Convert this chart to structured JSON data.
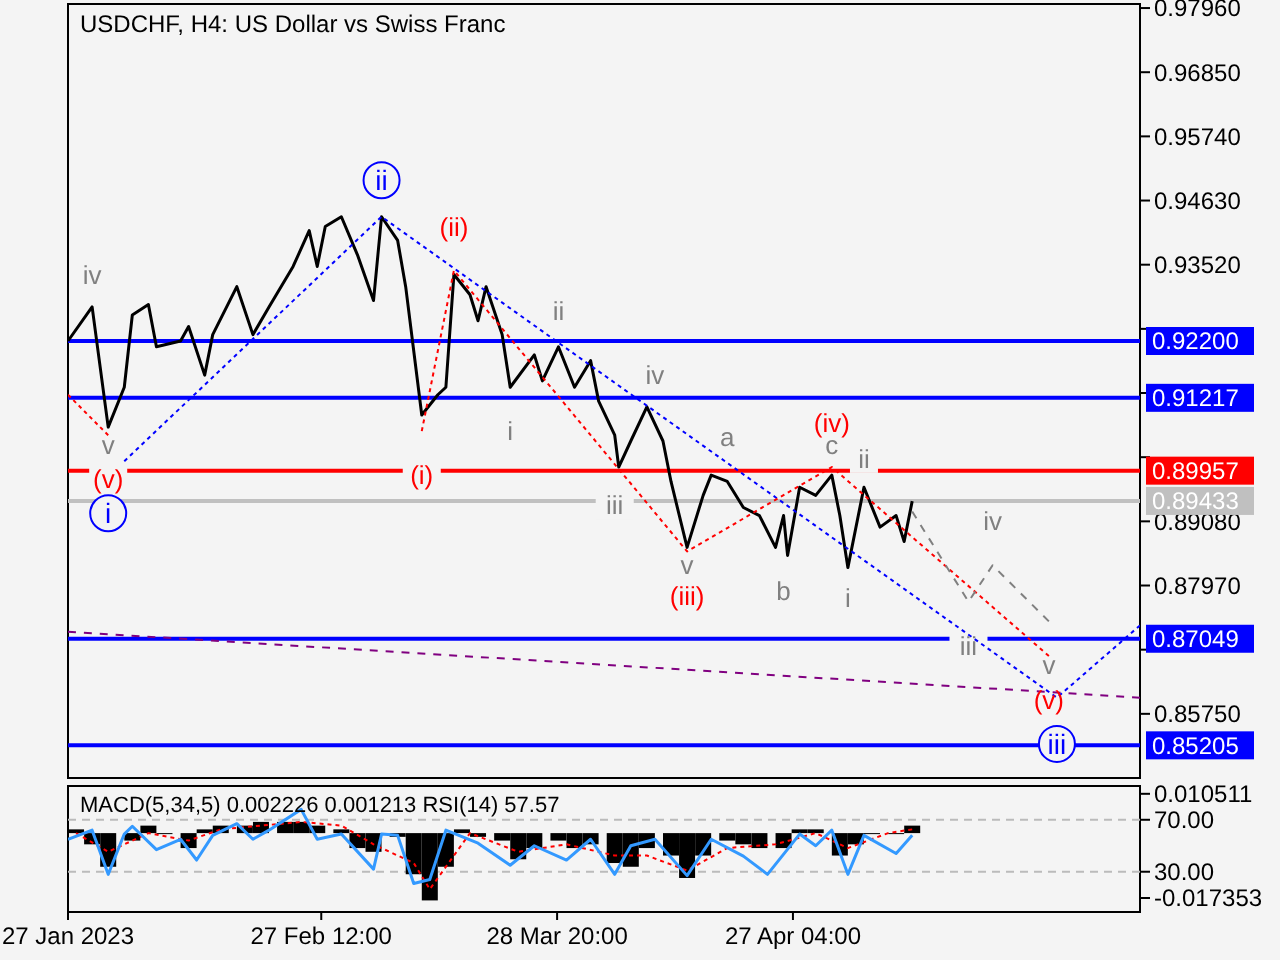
{
  "chart_data": [
    {
      "type": "line",
      "title": "USDCHF, H4:  US Dollar vs Swiss Franc",
      "xlim": [
        "2023-01-27",
        "2023-06-09T08:00"
      ],
      "ylim": [
        0.8464,
        0.9803
      ],
      "tick_labels": "y",
      "yticks": [
        {
          "value": 0.9796,
          "label": "0.97960"
        },
        {
          "value": 0.9685,
          "label": "0.96850"
        },
        {
          "value": 0.9574,
          "label": "0.95740"
        },
        {
          "value": 0.9463,
          "label": "0.94630"
        },
        {
          "value": 0.9352,
          "label": "0.93520"
        },
        {
          "value": 0.9241,
          "label": null
        },
        {
          "value": 0.913,
          "label": null
        },
        {
          "value": 0.9019,
          "label": null
        },
        {
          "value": 0.8908,
          "label": "0.89080"
        },
        {
          "value": 0.8797,
          "label": "0.87970"
        },
        {
          "value": 0.8686,
          "label": null
        },
        {
          "value": 0.8575,
          "label": "0.85750"
        }
      ],
      "ref_lines": [
        {
          "axis": "y",
          "value": 0.922,
          "label": "0.92200",
          "color": "#0000ff"
        },
        {
          "axis": "y",
          "value": 0.91217,
          "label": "0.91217",
          "color": "#0000ff"
        },
        {
          "axis": "y",
          "value": 0.89957,
          "label": "0.89957",
          "color": "#ff0000"
        },
        {
          "axis": "y",
          "value": 0.89433,
          "label": "0.89433",
          "color": "#c0c0c0"
        },
        {
          "axis": "y",
          "value": 0.87049,
          "label": "0.87049",
          "color": "#0000ff"
        },
        {
          "axis": "y",
          "value": 0.85205,
          "label": "0.85205",
          "color": "#0000ff"
        }
      ],
      "annotations": [
        {
          "text": "iv",
          "x": "2023-01-30",
          "y": 0.9335
        },
        {
          "text": "v",
          "x": "2023-02-01",
          "y": 0.904
        },
        {
          "text": "ii",
          "x": "2023-03-29",
          "y": 0.9272
        },
        {
          "text": "i",
          "x": "2023-03-23",
          "y": 0.9064
        },
        {
          "text": "iii",
          "x": "2023-04-05",
          "y": 0.8936
        },
        {
          "text": "iv",
          "x": "2023-04-10",
          "y": 0.9161
        },
        {
          "text": "v",
          "x": "2023-04-14",
          "y": 0.8832
        },
        {
          "text": "a",
          "x": "2023-04-19",
          "y": 0.9054
        },
        {
          "text": "b",
          "x": "2023-04-26",
          "y": 0.8787
        },
        {
          "text": "c",
          "x": "2023-05-02",
          "y": 0.904
        },
        {
          "text": "ii",
          "x": "2023-05-06",
          "y": 0.9016
        },
        {
          "text": "i",
          "x": "2023-05-04",
          "y": 0.8776
        }
      ],
      "series": [
        {
          "color": "#000000",
          "x": [
            "2023-01-27",
            "2023-01-30",
            "2023-02-01",
            "2023-02-03",
            "2023-02-04",
            "2023-02-06",
            "2023-02-07",
            "2023-02-10",
            "2023-02-11",
            "2023-02-13",
            "2023-02-14",
            "2023-02-17",
            "2023-02-19",
            "2023-02-21",
            "2023-02-24",
            "2023-02-26",
            "2023-02-27",
            "2023-02-28",
            "2023-03-02",
            "2023-03-04",
            "2023-03-06",
            "2023-03-07",
            "2023-03-09",
            "2023-03-10",
            "2023-03-12",
            "2023-03-14",
            "2023-03-15",
            "2023-03-16",
            "2023-03-18",
            "2023-03-19",
            "2023-03-20",
            "2023-03-22",
            "2023-03-23",
            "2023-03-26",
            "2023-03-27",
            "2023-03-29",
            "2023-03-31",
            "2023-04-02",
            "2023-04-03",
            "2023-04-05",
            "2023-04-05T12:00",
            "2023-04-07",
            "2023-04-09",
            "2023-04-11",
            "2023-04-12",
            "2023-04-14",
            "2023-04-16",
            "2023-04-17",
            "2023-04-19",
            "2023-04-21",
            "2023-04-23",
            "2023-04-25",
            "2023-04-26",
            "2023-04-26T12:00",
            "2023-04-28",
            "2023-04-30",
            "2023-05-02",
            "2023-05-03",
            "2023-05-04",
            "2023-05-06",
            "2023-05-08",
            "2023-05-10",
            "2023-05-11",
            "2023-05-12"
          ],
          "values": [
            0.922,
            0.9279,
            0.9071,
            0.914,
            0.9265,
            0.9283,
            0.921,
            0.922,
            0.9245,
            0.9161,
            0.9231,
            0.9314,
            0.9231,
            0.9279,
            0.9349,
            0.9411,
            0.9349,
            0.9418,
            0.9435,
            0.9369,
            0.929,
            0.9435,
            0.9394,
            0.9314,
            0.9092,
            0.9127,
            0.914,
            0.9335,
            0.93,
            0.9255,
            0.9314,
            0.9231,
            0.914,
            0.9196,
            0.9151,
            0.921,
            0.914,
            0.9186,
            0.9116,
            0.9057,
            0.9002,
            0.9047,
            0.9106,
            0.9047,
            0.8977,
            0.8863,
            0.8953,
            0.8988,
            0.8977,
            0.8932,
            0.8918,
            0.8863,
            0.8918,
            0.8849,
            0.8967,
            0.8953,
            0.8988,
            0.8918,
            0.8828,
            0.8967,
            0.8898,
            0.8918,
            0.8873,
            0.8943
          ]
        },
        {
          "color": "#800080",
          "line_style": "dashed",
          "x": [
            "2023-01-27",
            "2023-06-09T08:00"
          ],
          "values": [
            0.8717,
            0.8603
          ]
        },
        {
          "color": "#0000ff",
          "line_style": "dotted",
          "x": [
            "2023-02-03",
            "2023-03-07",
            "2023-05-30",
            "2023-06-09T08:00"
          ],
          "values": [
            0.9012,
            0.9435,
            0.8603,
            0.8728
          ]
        },
        {
          "color": "#ff0000",
          "line_style": "dotted",
          "x": [
            "2023-01-27",
            "2023-02-01"
          ],
          "values": [
            0.9127,
            0.9057
          ],
          "value_labels": [
            null,
            "(v)"
          ]
        },
        {
          "color": "#ff0000",
          "line_style": "dotted",
          "x": [
            "2023-03-12",
            "2023-03-16",
            "2023-04-14",
            "2023-05-02",
            "2023-05-29"
          ],
          "values": [
            0.9064,
            0.9342,
            0.8856,
            0.9002,
            0.8675
          ],
          "value_labels": [
            "(i)",
            "(ii)",
            "(iii)",
            "(iv)",
            "(v)"
          ]
        },
        {
          "color": "#808080",
          "line_style": "dashed",
          "x": [
            "2023-05-12",
            "2023-05-19",
            "2023-05-22",
            "2023-05-29"
          ],
          "values": [
            0.8925,
            0.8769,
            0.8832,
            0.8735
          ],
          "value_labels": [
            null,
            "iii",
            "iv",
            "v"
          ]
        },
        {
          "type": "scatter",
          "color": "#0000ff",
          "marker": "circle",
          "x": [
            "2023-02-01",
            "2023-03-07",
            "2023-05-30"
          ],
          "values": [
            0.8922,
            0.9498,
            0.8523
          ],
          "value_labels": [
            "i",
            "ii",
            "iii"
          ]
        }
      ]
    },
    {
      "type": "bar",
      "title": "MACD(5,34,5) 0.002226 0.001213 RSI(14) 57.57",
      "xlim": [
        "2023-01-27",
        "2023-06-09T08:00"
      ],
      "ylim": [
        -1,
        96
      ],
      "y2lim": [
        -0.0211,
        0.0126
      ],
      "grid": "y",
      "xticks": [
        {
          "value": "2023-01-27",
          "label": "27 Jan 2023"
        },
        {
          "value": "2023-02-27T12:00",
          "label": "27 Feb 12:00"
        },
        {
          "value": "2023-03-28T20:00",
          "label": "28 Mar 20:00"
        },
        {
          "value": "2023-04-27T04:00",
          "label": "27 Apr 04:00"
        }
      ],
      "yticks": [
        {
          "value": 70,
          "label": "70.00"
        },
        {
          "value": 30,
          "label": "30.00"
        }
      ],
      "y2ticks": [
        {
          "value": 0.010511,
          "label": "0.010511"
        },
        {
          "value": -0.017353,
          "label": "-0.017353"
        }
      ],
      "series": [
        {
          "axis": "y2",
          "color": "#000000",
          "x": [
            "2023-01-28",
            "2023-01-30",
            "2023-02-01",
            "2023-02-04",
            "2023-02-06",
            "2023-02-08",
            "2023-02-11",
            "2023-02-13",
            "2023-02-15",
            "2023-02-18",
            "2023-02-20",
            "2023-02-23",
            "2023-02-25",
            "2023-02-27",
            "2023-03-02",
            "2023-03-04",
            "2023-03-06",
            "2023-03-09",
            "2023-03-11",
            "2023-03-13",
            "2023-03-15",
            "2023-03-17",
            "2023-03-19",
            "2023-03-22",
            "2023-03-24",
            "2023-03-26",
            "2023-03-29",
            "2023-03-31",
            "2023-04-02",
            "2023-04-05",
            "2023-04-07",
            "2023-04-09",
            "2023-04-12",
            "2023-04-14",
            "2023-04-16",
            "2023-04-19",
            "2023-04-21",
            "2023-04-23",
            "2023-04-26",
            "2023-04-28",
            "2023-04-30",
            "2023-05-03",
            "2023-05-05",
            "2023-05-07",
            "2023-05-10",
            "2023-05-12"
          ],
          "values": [
            0.001,
            -0.003,
            -0.009,
            -0.002,
            0.002,
            0,
            -0.004,
            0.001,
            0.002,
            0.002,
            0.003,
            0.003,
            0.003,
            0.002,
            0.001,
            -0.004,
            -0.005,
            -0.001,
            -0.011,
            -0.018,
            -0.009,
            0.001,
            -0.001,
            -0.002,
            -0.007,
            -0.004,
            -0.002,
            -0.004,
            -0.003,
            -0.008,
            -0.009,
            -0.004,
            -0.006,
            -0.012,
            -0.006,
            -0.002,
            -0.003,
            -0.004,
            -0.004,
            0.001,
            0.001,
            -0.006,
            -0.003,
            0,
            0,
            0.002
          ]
        },
        {
          "type": "line",
          "axis": "y2",
          "color": "#ff0000",
          "line_style": "dotted",
          "x": [
            "2023-01-28",
            "2023-02-01",
            "2023-02-06",
            "2023-02-11",
            "2023-02-15",
            "2023-02-20",
            "2023-02-25",
            "2023-03-02",
            "2023-03-06",
            "2023-03-11",
            "2023-03-13",
            "2023-03-18",
            "2023-03-24",
            "2023-03-30",
            "2023-04-05",
            "2023-04-09",
            "2023-04-14",
            "2023-04-19",
            "2023-04-25",
            "2023-04-30",
            "2023-05-04",
            "2023-05-09",
            "2023-05-12"
          ],
          "values": [
            0,
            -0.005,
            0,
            -0.002,
            0.001,
            0.002,
            0.003,
            0.002,
            -0.003,
            -0.008,
            -0.015,
            0,
            -0.005,
            -0.003,
            -0.006,
            -0.006,
            -0.01,
            -0.004,
            -0.003,
            0,
            -0.004,
            0,
            0.001
          ]
        },
        {
          "type": "line",
          "axis": "y",
          "color": "#3399ff",
          "x": [
            "2023-01-27",
            "2023-01-30",
            "2023-02-01",
            "2023-02-03",
            "2023-02-04",
            "2023-02-07",
            "2023-02-10",
            "2023-02-12",
            "2023-02-14",
            "2023-02-17",
            "2023-02-19",
            "2023-02-21",
            "2023-02-25",
            "2023-02-27",
            "2023-03-02",
            "2023-03-06",
            "2023-03-07",
            "2023-03-09",
            "2023-03-11",
            "2023-03-13",
            "2023-03-15",
            "2023-03-19",
            "2023-03-23",
            "2023-03-26",
            "2023-03-30",
            "2023-04-02",
            "2023-04-05",
            "2023-04-07",
            "2023-04-10",
            "2023-04-14",
            "2023-04-17",
            "2023-04-21",
            "2023-04-24",
            "2023-04-28",
            "2023-04-30",
            "2023-05-02",
            "2023-05-04",
            "2023-05-06",
            "2023-05-10",
            "2023-05-12"
          ],
          "values": [
            55,
            62,
            28,
            59,
            65,
            47,
            55,
            39,
            58,
            67,
            55,
            62,
            78,
            55,
            59,
            32,
            59,
            58,
            21,
            24,
            62,
            52,
            35,
            50,
            39,
            55,
            28,
            50,
            55,
            27,
            55,
            42,
            28,
            59,
            50,
            62,
            28,
            58,
            44,
            58
          ]
        }
      ]
    }
  ]
}
